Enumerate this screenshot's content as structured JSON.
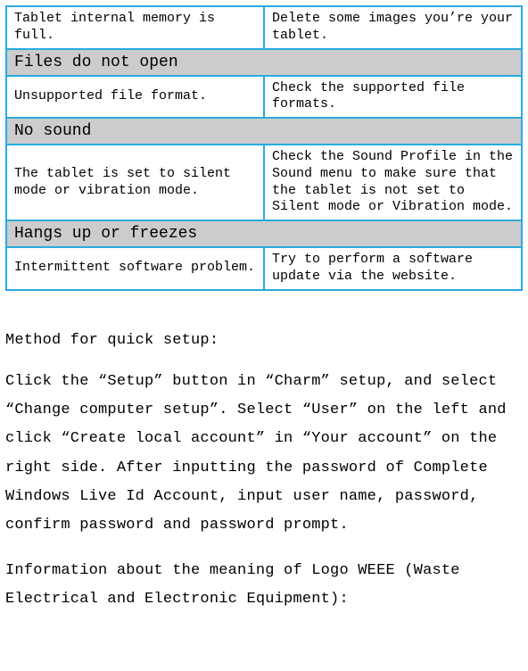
{
  "colors": {
    "cell_border": "#29abe2",
    "header_bg": "#cccccc",
    "page_bg": "#ffffff",
    "text": "#000000"
  },
  "table": {
    "rows": [
      {
        "type": "two",
        "left": "Tablet internal memory is full.",
        "right": "Delete some images you’re your tablet."
      },
      {
        "type": "header",
        "text": "Files do not open"
      },
      {
        "type": "two",
        "left": "Unsupported file format.",
        "right": "Check the supported file formats."
      },
      {
        "type": "header",
        "text": "No sound"
      },
      {
        "type": "two",
        "left": "The tablet is set to silent mode or vibration mode.",
        "right": "Check the Sound Profile in the Sound menu to make sure that the tablet is not set to Silent mode or Vibration mode."
      },
      {
        "type": "header",
        "text": "Hangs up or freezes"
      },
      {
        "type": "two",
        "left": "Intermittent software problem.",
        "right": "Try to perform a software update via the website."
      }
    ]
  },
  "body_text": {
    "p1": "Method for quick setup:",
    "p2": "Click the “Setup” button in “Charm” setup, and select “Change computer setup”. Select “User” on the left and click “Create local account” in “Your account” on the right side. After inputting the password of Complete Windows Live Id Account, input user name, password, confirm password and password prompt.",
    "p3": "Information about the meaning of Logo WEEE (Waste Electrical and Electronic Equipment):"
  }
}
